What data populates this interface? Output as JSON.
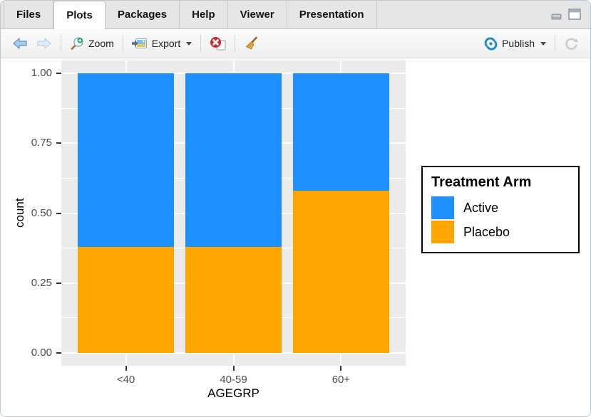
{
  "window": {
    "controls": {
      "minimize": "minimize",
      "maximize": "maximize"
    }
  },
  "tabs": {
    "items": [
      {
        "label": "Files",
        "active": false
      },
      {
        "label": "Plots",
        "active": true
      },
      {
        "label": "Packages",
        "active": false
      },
      {
        "label": "Help",
        "active": false
      },
      {
        "label": "Viewer",
        "active": false
      },
      {
        "label": "Presentation",
        "active": false
      }
    ]
  },
  "toolbar": {
    "zoom_label": "Zoom",
    "export_label": "Export",
    "publish_label": "Publish"
  },
  "icons": {
    "back": "back-arrow-icon",
    "forward": "forward-arrow-icon",
    "zoom": "zoom-magnifier-icon",
    "export": "export-image-icon",
    "remove": "remove-plot-icon",
    "clear": "clear-plots-broom-icon",
    "publish": "publish-icon",
    "refresh": "refresh-icon",
    "minimize": "minimize-icon",
    "maximize": "maximize-icon"
  },
  "chart_data": {
    "type": "bar",
    "stacked": true,
    "normalized": true,
    "categories": [
      "<40",
      "40-59",
      "60+"
    ],
    "series": [
      {
        "name": "Active",
        "color": "#1E90FF",
        "values": [
          0.62,
          0.62,
          0.42
        ]
      },
      {
        "name": "Placebo",
        "color": "#FFA500",
        "values": [
          0.38,
          0.38,
          0.58
        ]
      }
    ],
    "stack_order_bottom_to_top": [
      "Placebo",
      "Active"
    ],
    "title": "",
    "xlabel": "AGEGRP",
    "ylabel": "count",
    "ylim": [
      0,
      1
    ],
    "yticks": [
      {
        "label": "0.00",
        "value": 0
      },
      {
        "label": "0.25",
        "value": 0.25
      },
      {
        "label": "0.50",
        "value": 0.5
      },
      {
        "label": "0.75",
        "value": 0.75
      },
      {
        "label": "1.00",
        "value": 1
      }
    ],
    "minor_gridlines": [
      0.125,
      0.375,
      0.625,
      0.875
    ],
    "grid": true,
    "panel_background": "#EBEBEB",
    "gridline_color": "#FFFFFF",
    "tick_color": "#333333",
    "axis_text_color": "#4D4D4D",
    "legend": {
      "title": "Treatment Arm",
      "position": "right",
      "entries": [
        {
          "label": "Active",
          "color": "#1E90FF"
        },
        {
          "label": "Placebo",
          "color": "#FFA500"
        }
      ]
    }
  }
}
